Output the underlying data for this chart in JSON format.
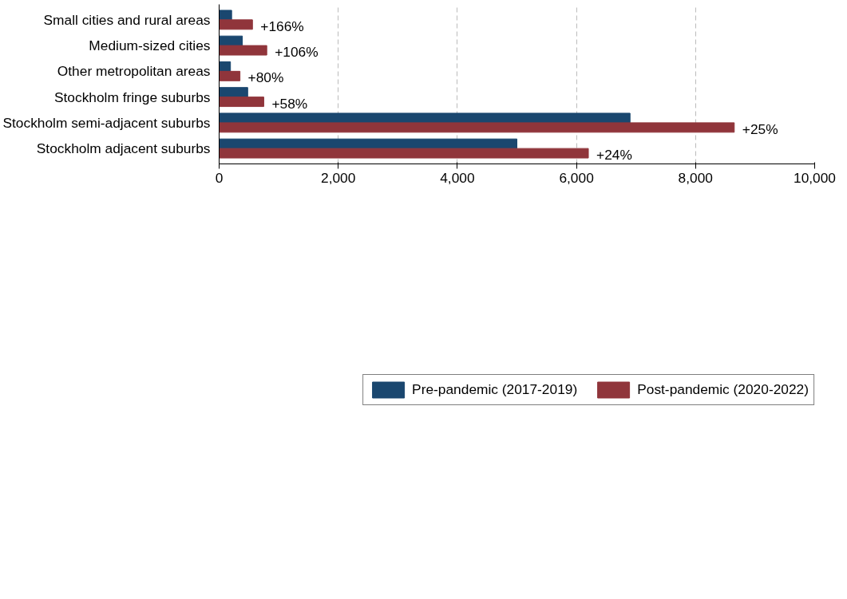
{
  "chart_data": {
    "type": "bar",
    "orientation": "horizontal",
    "categories": [
      "Small cities and rural areas",
      "Medium-sized cities",
      "Other metropolitan areas",
      "Stockholm fringe suburbs",
      "Stockholm semi-adjacent suburbs",
      "Stockholm adjacent suburbs"
    ],
    "series": [
      {
        "name": "Pre-pandemic (2017-2019)",
        "color": "#1a476f",
        "values": [
          210,
          390,
          190,
          480,
          6900,
          5000
        ]
      },
      {
        "name": "Post-pandemic (2020-2022)",
        "color": "#90353b",
        "values": [
          560,
          800,
          350,
          750,
          8650,
          6200
        ]
      }
    ],
    "annotations": [
      {
        "text": "+166%",
        "x": 560,
        "y": "Small cities and rural areas"
      },
      {
        "text": "+106%",
        "x": 800,
        "y": "Medium-sized cities"
      },
      {
        "text": "+80%",
        "x": 350,
        "y": "Other metropolitan areas"
      },
      {
        "text": "+58%",
        "x": 750,
        "y": "Stockholm fringe suburbs"
      },
      {
        "text": "+25%",
        "x": 8650,
        "y": "Stockholm semi-adjacent suburbs"
      },
      {
        "text": "+24%",
        "x": 6200,
        "y": "Stockholm adjacent suburbs"
      }
    ],
    "xlim": [
      0,
      10000
    ],
    "xticks": [
      {
        "value": 0,
        "label": "0"
      },
      {
        "value": 2000,
        "label": "2,000"
      },
      {
        "value": 4000,
        "label": "4,000"
      },
      {
        "value": 6000,
        "label": "6,000"
      },
      {
        "value": 8000,
        "label": "8,000"
      },
      {
        "value": 10000,
        "label": "10,000"
      }
    ],
    "grid": "x",
    "legend": "bottom"
  }
}
